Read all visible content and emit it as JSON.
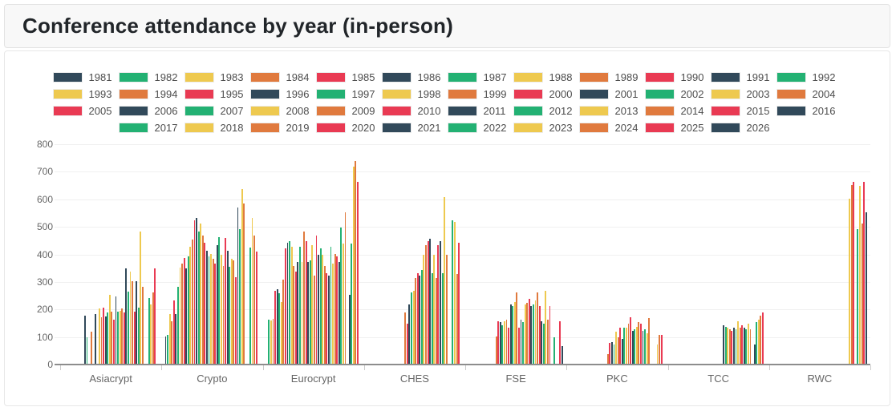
{
  "header": {
    "title": "Conference attendance by year (in-person)"
  },
  "chart_data": {
    "type": "bar",
    "title": "Conference attendance by year (in-person)",
    "categories": [
      "Asiacrypt",
      "Crypto",
      "Eurocrypt",
      "CHES",
      "FSE",
      "PKC",
      "TCC",
      "RWC"
    ],
    "ylim": [
      0,
      800
    ],
    "ytick_step": 100,
    "ytick_labels": [
      "800",
      "700",
      "600",
      "500",
      "400",
      "300",
      "200",
      "100",
      "0"
    ],
    "grid": true,
    "legend_position": "top",
    "years": [
      1981,
      1982,
      1983,
      1984,
      1985,
      1986,
      1987,
      1988,
      1989,
      1990,
      1991,
      1992,
      1993,
      1994,
      1995,
      1996,
      1997,
      1998,
      1999,
      2000,
      2001,
      2002,
      2003,
      2004,
      2005,
      2006,
      2007,
      2008,
      2009,
      2010,
      2011,
      2012,
      2013,
      2014,
      2015,
      2016,
      2017,
      2018,
      2019,
      2020,
      2021,
      2022,
      2023,
      2024,
      2025,
      2026
    ],
    "colors": {
      "dark-slate": "#31495a",
      "green": "#23b173",
      "yellow": "#eec94f",
      "orange": "#e07a3e",
      "red": "#e93a53"
    },
    "color_cycle": [
      "dark-slate",
      "green",
      "yellow",
      "orange",
      "red"
    ],
    "color_cycle_start_year": 1981,
    "series": [
      {
        "name": "Asiacrypt",
        "data": {
          "1991": 175,
          "1992": 95,
          "1994": 115,
          "1996": 180,
          "1998": 200,
          "1999": 170,
          "2000": 205,
          "2001": 172,
          "2002": 185,
          "2003": 250,
          "2004": 190,
          "2005": 160,
          "2006": 245,
          "2007": 190,
          "2008": 192,
          "2009": 200,
          "2010": 185,
          "2011": 345,
          "2012": 262,
          "2013": 335,
          "2014": 300,
          "2015": 190,
          "2016": 300,
          "2017": 205,
          "2018": 480,
          "2019": 280,
          "2022": 240,
          "2023": 215,
          "2024": 260,
          "2025": 345
        }
      },
      {
        "name": "Crypto",
        "data": {
          "1981": 100,
          "1982": 105,
          "1983": 180,
          "1984": 155,
          "1985": 230,
          "1986": 180,
          "1987": 280,
          "1988": 350,
          "1989": 365,
          "1990": 385,
          "1991": 345,
          "1992": 390,
          "1993": 425,
          "1994": 450,
          "1995": 520,
          "1996": 530,
          "1997": 480,
          "1998": 510,
          "1999": 465,
          "2000": 440,
          "2001": 410,
          "2002": 390,
          "2003": 400,
          "2004": 380,
          "2005": 365,
          "2006": 430,
          "2007": 460,
          "2008": 395,
          "2009": 355,
          "2010": 458,
          "2011": 410,
          "2012": 351,
          "2013": 380,
          "2014": 376,
          "2015": 313,
          "2016": 567,
          "2017": 490,
          "2018": 635,
          "2019": 583,
          "2022": 423,
          "2023": 530,
          "2024": 465,
          "2025": 408
        }
      },
      {
        "name": "Eurocrypt",
        "data": {
          "1982": 160,
          "1983": 158,
          "1984": 163,
          "1985": 265,
          "1986": 270,
          "1987": 255,
          "1988": 225,
          "1989": 305,
          "1990": 420,
          "1991": 440,
          "1992": 445,
          "1993": 425,
          "1994": 355,
          "1995": 335,
          "1996": 370,
          "1997": 425,
          "1998": 370,
          "1999": 480,
          "2000": 445,
          "2001": 370,
          "2002": 375,
          "2003": 430,
          "2004": 320,
          "2005": 465,
          "2006": 395,
          "2007": 420,
          "2008": 395,
          "2009": 355,
          "2010": 330,
          "2011": 320,
          "2012": 425,
          "2013": 365,
          "2014": 400,
          "2015": 390,
          "2016": 370,
          "2017": 495,
          "2018": 435,
          "2019": 550,
          "2021": 250,
          "2022": 435,
          "2023": 715,
          "2024": 735,
          "2025": 660
        }
      },
      {
        "name": "CHES",
        "data": {
          "1999": 185,
          "2000": 145,
          "2001": 215,
          "2002": 260,
          "2003": 265,
          "2004": 310,
          "2005": 330,
          "2006": 320,
          "2007": 340,
          "2008": 395,
          "2009": 430,
          "2010": 445,
          "2011": 455,
          "2012": 330,
          "2013": 395,
          "2014": 310,
          "2015": 430,
          "2016": 445,
          "2017": 330,
          "2018": 605,
          "2019": 395,
          "2022": 520,
          "2023": 515,
          "2024": 325,
          "2025": 440
        }
      },
      {
        "name": "FSE",
        "data": {
          "1994": 100,
          "1995": 155,
          "1996": 150,
          "1997": 140,
          "1998": 155,
          "1999": 160,
          "2000": 130,
          "2001": 215,
          "2002": 210,
          "2003": 225,
          "2004": 260,
          "2005": 130,
          "2006": 160,
          "2007": 150,
          "2008": 215,
          "2009": 220,
          "2010": 235,
          "2011": 210,
          "2012": 215,
          "2013": 230,
          "2014": 260,
          "2015": 210,
          "2016": 155,
          "2017": 145,
          "2018": 265,
          "2019": 160,
          "2020": 210,
          "2022": 95,
          "2025": 155,
          "2026": 65
        }
      },
      {
        "name": "PKC",
        "data": {
          "1999": 35,
          "2000": 75,
          "2001": 80,
          "2002": 70,
          "2003": 115,
          "2004": 95,
          "2005": 130,
          "2006": 90,
          "2007": 130,
          "2008": 130,
          "2009": 145,
          "2010": 170,
          "2011": 120,
          "2012": 125,
          "2013": 135,
          "2014": 150,
          "2015": 145,
          "2016": 120,
          "2017": 125,
          "2018": 110,
          "2019": 165,
          "2023": 70,
          "2024": 105,
          "2025": 105
        }
      },
      {
        "name": "TCC",
        "data": {
          "2006": 140,
          "2007": 135,
          "2008": 130,
          "2009": 125,
          "2010": 120,
          "2011": 130,
          "2012": 125,
          "2013": 155,
          "2014": 130,
          "2015": 140,
          "2016": 130,
          "2017": 125,
          "2018": 145,
          "2019": 125,
          "2021": 70,
          "2022": 150,
          "2023": 160,
          "2024": 175,
          "2025": 185
        }
      },
      {
        "name": "RWC",
        "data": {
          "2018": 600,
          "2019": 650,
          "2020": 660,
          "2022": 490,
          "2023": 645,
          "2024": 510,
          "2025": 660,
          "2026": 550
        }
      }
    ]
  }
}
